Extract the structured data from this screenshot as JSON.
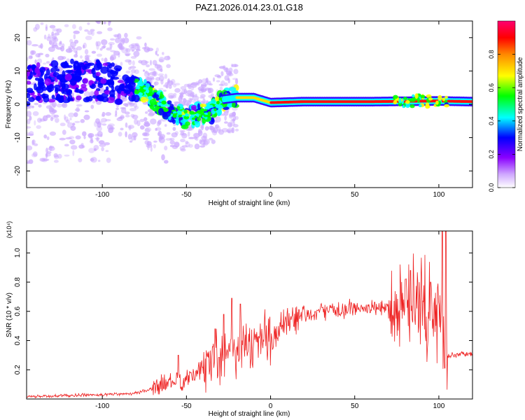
{
  "figure_title": "PAZ1.2026.014.23.01.G18",
  "chart_data": [
    {
      "type": "heatmap",
      "title": "PAZ1.2026.014.23.01.G18",
      "xlabel": "Height of straight line (km)",
      "ylabel": "Frequency (Hz)",
      "xlim": [
        -145,
        120
      ],
      "ylim": [
        -25,
        25
      ],
      "x_ticks": [
        -100,
        -50,
        0,
        50,
        100
      ],
      "x_tick_labels": [
        "-100",
        "-50",
        "0",
        "50",
        "100"
      ],
      "y_ticks": [
        -20,
        -10,
        0,
        10,
        20
      ],
      "y_tick_labels": [
        "-20",
        "-10",
        "0",
        "10",
        "20"
      ],
      "colorbar": {
        "label": "Normalized spectral amplitude",
        "range": [
          0,
          1
        ],
        "ticks": [
          0.0,
          0.2,
          0.4,
          0.6,
          0.8
        ],
        "tick_labels": [
          "0.0",
          "0.2",
          "0.4",
          "0.6",
          "0.8"
        ],
        "colors": [
          "#ffffff",
          "#8a00ff",
          "#0000ff",
          "#00ffff",
          "#00ff00",
          "#ffff00",
          "#ff6600",
          "#ff0000",
          "#ff0060"
        ]
      },
      "ridge": [
        {
          "x": -140,
          "f": 6
        },
        {
          "x": -120,
          "f": 7
        },
        {
          "x": -100,
          "f": 7
        },
        {
          "x": -85,
          "f": 5
        },
        {
          "x": -75,
          "f": 4
        },
        {
          "x": -65,
          "f": 0
        },
        {
          "x": -58,
          "f": -3
        },
        {
          "x": -50,
          "f": -4
        },
        {
          "x": -42,
          "f": -3
        },
        {
          "x": -35,
          "f": -2
        },
        {
          "x": -28,
          "f": 1.5
        },
        {
          "x": -20,
          "f": 2
        },
        {
          "x": -10,
          "f": 2
        },
        {
          "x": 0,
          "f": 0.5
        },
        {
          "x": 20,
          "f": 0.8
        },
        {
          "x": 60,
          "f": 0.8
        },
        {
          "x": 100,
          "f": 1.0
        },
        {
          "x": 120,
          "f": 0.8
        }
      ]
    },
    {
      "type": "line",
      "series_name": "SNR",
      "xlabel": "Height of straight line (km)",
      "ylabel": "SNR (10 * v/v)",
      "y_multiplier_label": "(x10⁴)",
      "xlim": [
        -145,
        120
      ],
      "ylim": [
        0,
        1.15
      ],
      "x_ticks": [
        -100,
        -50,
        0,
        50,
        100
      ],
      "x_tick_labels": [
        "-100",
        "-50",
        "0",
        "50",
        "100"
      ],
      "y_ticks": [
        0.2,
        0.4,
        0.6,
        0.8,
        1.0
      ],
      "y_tick_labels": [
        "0.2",
        "0.4",
        "0.6",
        "0.8",
        "1.0"
      ],
      "color": "#ee2020",
      "envelope": [
        {
          "x": -145,
          "y": 0.015
        },
        {
          "x": -100,
          "y": 0.03
        },
        {
          "x": -80,
          "y": 0.04
        },
        {
          "x": -70,
          "y": 0.07
        },
        {
          "x": -60,
          "y": 0.12
        },
        {
          "x": -50,
          "y": 0.12
        },
        {
          "x": -40,
          "y": 0.22
        },
        {
          "x": -30,
          "y": 0.33
        },
        {
          "x": -20,
          "y": 0.35
        },
        {
          "x": -10,
          "y": 0.38
        },
        {
          "x": 0,
          "y": 0.43
        },
        {
          "x": 10,
          "y": 0.5
        },
        {
          "x": 20,
          "y": 0.57
        },
        {
          "x": 30,
          "y": 0.6
        },
        {
          "x": 50,
          "y": 0.62
        },
        {
          "x": 60,
          "y": 0.62
        },
        {
          "x": 70,
          "y": 0.63
        },
        {
          "x": 80,
          "y": 0.65
        },
        {
          "x": 90,
          "y": 0.62
        },
        {
          "x": 100,
          "y": 0.55
        },
        {
          "x": 105,
          "y": 0.3
        },
        {
          "x": 120,
          "y": 0.31
        }
      ],
      "peaks": [
        {
          "x": -55,
          "y": 0.3
        },
        {
          "x": -33,
          "y": 0.48
        },
        {
          "x": -28,
          "y": 0.58
        },
        {
          "x": -23,
          "y": 0.69
        },
        {
          "x": -18,
          "y": 0.65
        },
        {
          "x": 80,
          "y": 0.82
        },
        {
          "x": 83,
          "y": 0.88
        },
        {
          "x": 95,
          "y": 0.8
        },
        {
          "x": 102,
          "y": 1.15
        },
        {
          "x": 104,
          "y": 1.15
        }
      ]
    }
  ]
}
